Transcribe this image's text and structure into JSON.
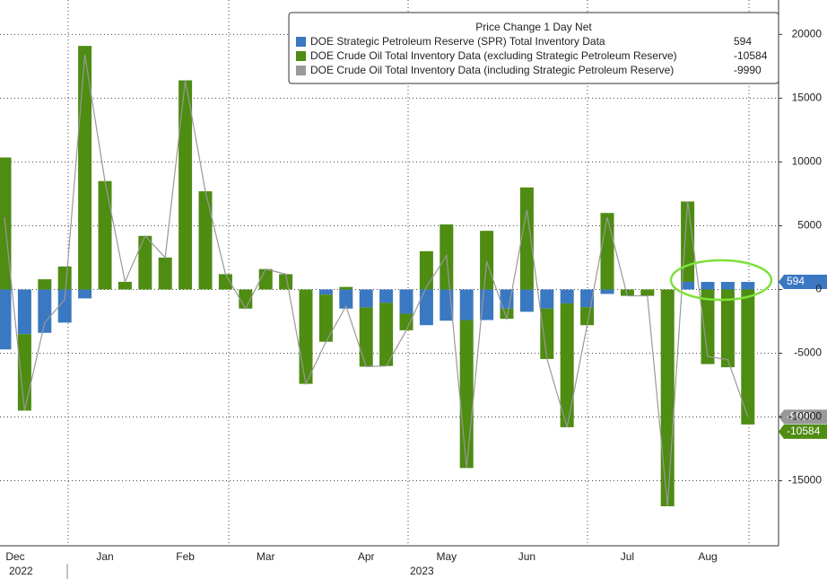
{
  "chart_data": {
    "type": "bar",
    "legend_title": "Price Change 1 Day Net",
    "categories": [
      "Dec",
      null,
      null,
      null,
      null,
      "Jan",
      null,
      null,
      null,
      "Feb",
      null,
      null,
      null,
      "Mar",
      null,
      null,
      null,
      null,
      "Apr",
      null,
      null,
      null,
      "May",
      null,
      null,
      null,
      "Jun",
      null,
      null,
      null,
      null,
      "Jul",
      null,
      null,
      null,
      "Aug",
      null,
      null
    ],
    "years": [
      "2022",
      "2023"
    ],
    "series": [
      {
        "name": "DOE Strategic Petroleum Reserve (SPR) Total Inventory Data",
        "color": "#3b78c2",
        "values": [
          -4700,
          -3500,
          -3400,
          -2600,
          -700,
          0,
          0,
          0,
          0,
          0,
          0,
          0,
          0,
          0,
          0,
          0,
          -400,
          -1500,
          -1400,
          -1050,
          -1900,
          -2800,
          -2450,
          -2400,
          -2400,
          -1500,
          -1750,
          -1500,
          -1100,
          -1400,
          -350,
          0,
          0,
          0,
          600,
          594,
          594,
          594
        ]
      },
      {
        "name": "DOE Crude Oil Total Inventory Data (excluding Strategic Petroleum Reserve)",
        "color": "#4e8c12",
        "values": [
          10350,
          -6000,
          800,
          1800,
          19100,
          8500,
          600,
          4200,
          2500,
          16400,
          7700,
          1200,
          -1500,
          1600,
          1200,
          -7400,
          -3700,
          200,
          -4650,
          -4950,
          -1300,
          3000,
          5100,
          -11600,
          4600,
          -800,
          8000,
          -3950,
          -9700,
          -1400,
          6000,
          -500,
          -500,
          -17000,
          6300,
          -5850,
          -6100,
          -10584
        ]
      },
      {
        "name": "DOE Crude Oil Total Inventory Data (including Strategic Petroleum Reserve)",
        "color": "#999999",
        "draw": "line",
        "values": [
          5650,
          -9500,
          -2600,
          -800,
          18400,
          8500,
          600,
          4200,
          2500,
          16400,
          7700,
          1200,
          -1500,
          1600,
          1200,
          -7400,
          -4100,
          -1300,
          -6050,
          -6000,
          -3200,
          200,
          2650,
          -14000,
          2200,
          -2300,
          6250,
          -5450,
          -10800,
          -2800,
          5650,
          -500,
          -500,
          -17000,
          6900,
          -5256,
          -5506,
          -9990
        ]
      }
    ],
    "ylim": [
      -20100,
      22700
    ],
    "yticks": [
      20000,
      15000,
      10000,
      5000,
      0,
      -5000,
      -10000,
      -15000
    ],
    "grid": true
  }
}
